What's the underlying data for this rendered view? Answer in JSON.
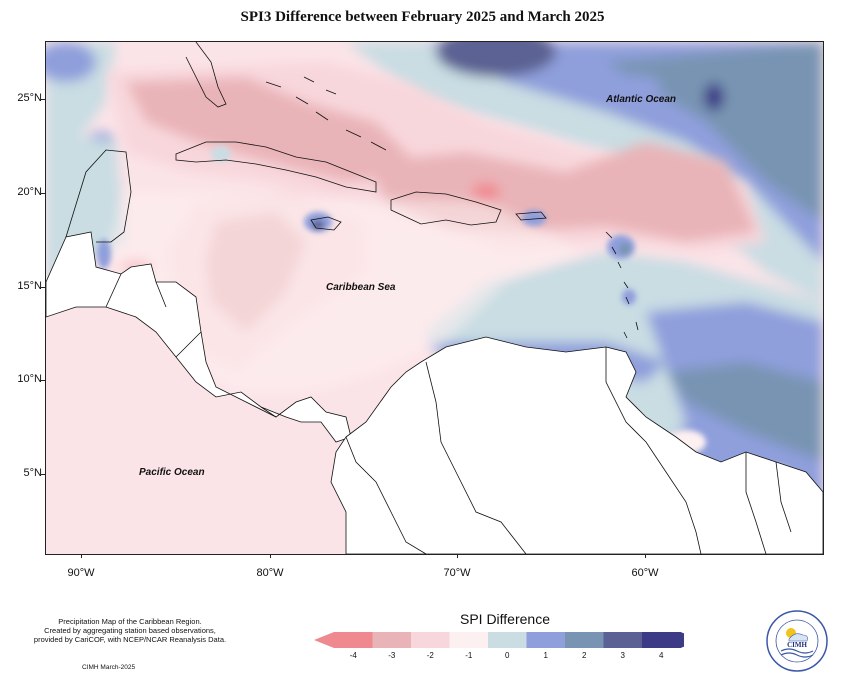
{
  "title": "SPI3 Difference between February 2025 and March 2025",
  "map": {
    "lat_labels": [
      "25°N",
      "20°N",
      "15°N",
      "10°N",
      "5°N"
    ],
    "lon_labels": [
      "90°W",
      "80°W",
      "70°W",
      "60°W"
    ],
    "ocean_labels": {
      "atlantic": "Atlantic Ocean",
      "caribbean": "Caribbean Sea",
      "pacific": "Pacific Ocean"
    }
  },
  "legend": {
    "title": "SPI Difference",
    "ticks": [
      "-4",
      "-3",
      "-2",
      "-1",
      "0",
      "1",
      "2",
      "3",
      "4"
    ],
    "colors": [
      "#f0888f",
      "#e9b4b8",
      "#f8d7dc",
      "#fdf0f1",
      "#c9dde3",
      "#8f9fdc",
      "#7894b2",
      "#5b6293",
      "#3e3b86"
    ]
  },
  "credits": {
    "line1": "Precipitation Map of the Caribbean Region.",
    "line2": "Created by aggregating station based observations,",
    "line3": "provided by CariCOF, with NCEP/NCAR Reanalysis Data.",
    "date": "CIMH March-2025"
  },
  "logo": {
    "icon": "cimh-logo-icon",
    "text": "CIMH"
  }
}
